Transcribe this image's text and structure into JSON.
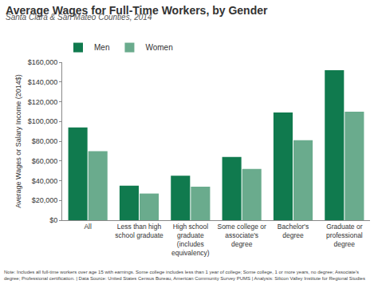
{
  "chart_data": {
    "type": "bar",
    "title": "Average Wages for Full-Time Workers, by Gender",
    "subtitle": "Santa Clara & San Mateo Counties, 2014",
    "y_label": "Average Wages or Salary Income (2014$)",
    "categories": [
      "All",
      "Less than high school graduate",
      "High school graduate (includes equivalency)",
      "Some college or associate's degree",
      "Bachelor's degree",
      "Graduate or professional degree"
    ],
    "series": [
      {
        "name": "Men",
        "color": "#107a4e",
        "values": [
          94000,
          35000,
          45000,
          64000,
          109000,
          152000
        ]
      },
      {
        "name": "Women",
        "color": "#6aab8d",
        "values": [
          70000,
          27000,
          34000,
          52000,
          81000,
          110000
        ]
      }
    ],
    "ylim": [
      0,
      160000
    ],
    "yticks": [
      {
        "value": 0,
        "label": "$0"
      },
      {
        "value": 20000,
        "label": "$20,000"
      },
      {
        "value": 40000,
        "label": "$40,000"
      },
      {
        "value": 60000,
        "label": "$60,000"
      },
      {
        "value": 80000,
        "label": "$80,000"
      },
      {
        "value": 100000,
        "label": "$100,000"
      },
      {
        "value": 120000,
        "label": "$120,000"
      },
      {
        "value": 140000,
        "label": "$140,000"
      },
      {
        "value": 160000,
        "label": "$160,000"
      }
    ],
    "grid": false,
    "legend": "top left",
    "annotations": [
      "Note: Includes all full-time workers over age 15 with earnings. Some college includes less than 1 year of college; Some college, 1 or more years, no degree; Associate's degree; Professional certification. | Data Source: United States Census Bureau, American Community Survey PUMS | Analysis: Silicon Valley Institute for Regional Studies"
    ]
  }
}
